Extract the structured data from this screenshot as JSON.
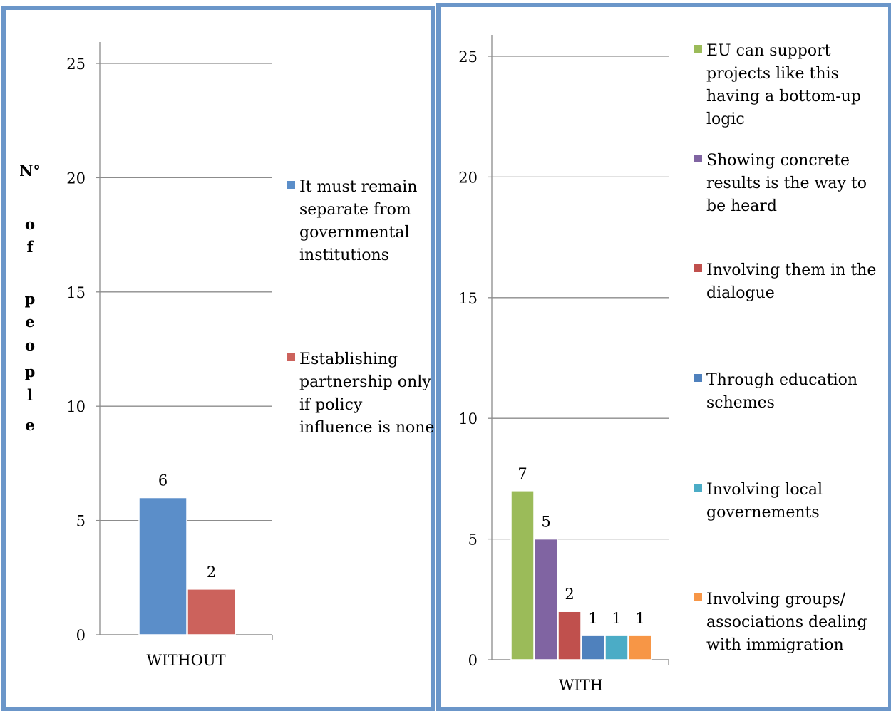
{
  "chart_data": [
    {
      "type": "bar",
      "ylabel": "N° of people",
      "ylim": [
        0,
        25
      ],
      "yticks": [
        0,
        5,
        10,
        15,
        20,
        25
      ],
      "grid": true,
      "legend_position": "right",
      "categories": [
        "WITHOUT"
      ],
      "series": [
        {
          "name": "It must remain separate from governmental institutions",
          "values": [
            6
          ],
          "color": "#5b8ec9"
        },
        {
          "name": "Establishing partnership only if policy influence is none",
          "values": [
            2
          ],
          "color": "#cc625c"
        }
      ]
    },
    {
      "type": "bar",
      "ylim": [
        0,
        25
      ],
      "yticks": [
        0,
        5,
        10,
        15,
        20,
        25
      ],
      "grid": true,
      "legend_position": "right",
      "categories": [
        "WITH"
      ],
      "series": [
        {
          "name": "EU can support projects like this having a bottom-up logic",
          "values": [
            7
          ],
          "color": "#9bbb59"
        },
        {
          "name": "Showing concrete results is the way to be heard",
          "values": [
            5
          ],
          "color": "#8064a2"
        },
        {
          "name": "Involving them in the dialogue",
          "values": [
            2
          ],
          "color": "#c0504d"
        },
        {
          "name": "Through education schemes",
          "values": [
            1
          ],
          "color": "#4f81bd"
        },
        {
          "name": "Involving local governements",
          "values": [
            1
          ],
          "color": "#4bacc6"
        },
        {
          "name": "Involving groups/ associations dealing with immigration",
          "values": [
            1
          ],
          "color": "#f79646"
        }
      ]
    }
  ]
}
